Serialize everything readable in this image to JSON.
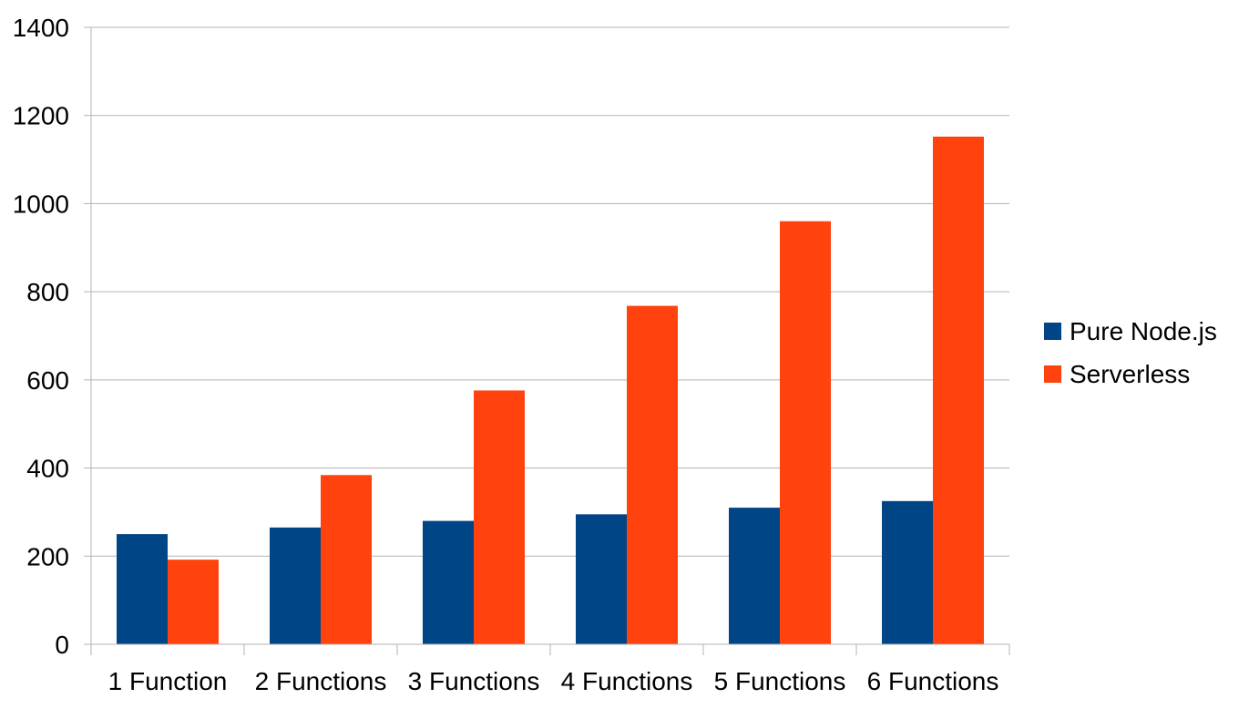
{
  "chart_data": {
    "type": "bar",
    "title": "",
    "xlabel": "",
    "ylabel": "",
    "categories": [
      "1 Function",
      "2 Functions",
      "3 Functions",
      "4 Functions",
      "5 Functions",
      "6 Functions"
    ],
    "series": [
      {
        "name": "Pure Node.js",
        "color": "#004586",
        "values": [
          250,
          265,
          280,
          295,
          310,
          325
        ]
      },
      {
        "name": "Serverless",
        "color": "#ff420e",
        "values": [
          192,
          384,
          576,
          768,
          960,
          1152
        ]
      }
    ],
    "ylim": [
      0,
      1400
    ],
    "yticks": [
      "0",
      "200",
      "400",
      "600",
      "800",
      "1000",
      "1200",
      "1400"
    ],
    "grid": true,
    "legend_position": "right"
  }
}
